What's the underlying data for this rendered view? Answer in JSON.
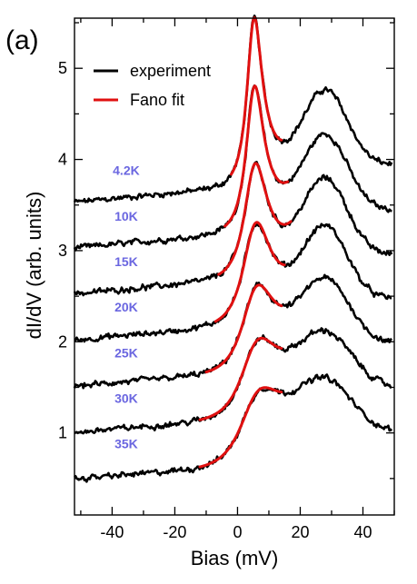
{
  "panel_label": "(a)",
  "chart_data": {
    "type": "line",
    "xlabel": "Bias (mV)",
    "ylabel": "dI/dV (arb. units)",
    "xlim": [
      -52,
      50
    ],
    "ylim": [
      0.1,
      5.55
    ],
    "xticks": [
      -40,
      -20,
      0,
      20,
      40
    ],
    "yticks": [
      1,
      2,
      3,
      4,
      5
    ],
    "legend": {
      "position": "top-left",
      "entries": [
        {
          "label": "experiment",
          "color": "#000000"
        },
        {
          "label": "Fano fit",
          "color": "#e01010"
        }
      ]
    },
    "series": [
      {
        "name": "4.2K",
        "baseline": 3.55,
        "slope": 0.0035,
        "peak_x": 5.0,
        "peak_height": 1.8,
        "peak_width": 3.0,
        "fano_q": 8,
        "hump_x": 28,
        "hump_height": 0.85,
        "hump_width": 10,
        "fit_range": [
          -2,
          14
        ]
      },
      {
        "name": "10K",
        "baseline": 3.05,
        "slope": 0.0035,
        "peak_x": 5.0,
        "peak_height": 1.55,
        "peak_width": 3.5,
        "fano_q": 7,
        "hump_x": 28,
        "hump_height": 0.85,
        "hump_width": 10,
        "fit_range": [
          -4,
          16
        ]
      },
      {
        "name": "15K",
        "baseline": 2.55,
        "slope": 0.0035,
        "peak_x": 5.0,
        "peak_height": 1.2,
        "peak_width": 4.5,
        "fano_q": 6,
        "hump_x": 28,
        "hump_height": 0.85,
        "hump_width": 10,
        "fit_range": [
          -6,
          17
        ]
      },
      {
        "name": "20K",
        "baseline": 2.05,
        "slope": 0.0035,
        "peak_x": 5.0,
        "peak_height": 1.05,
        "peak_width": 5.5,
        "fano_q": 5,
        "hump_x": 28,
        "hump_height": 0.8,
        "hump_width": 10,
        "fit_range": [
          -7,
          15
        ]
      },
      {
        "name": "25K",
        "baseline": 1.55,
        "slope": 0.0035,
        "peak_x": 5.0,
        "peak_height": 0.85,
        "peak_width": 6.5,
        "fano_q": 4,
        "hump_x": 28,
        "hump_height": 0.7,
        "hump_width": 11,
        "fit_range": [
          -10,
          14
        ]
      },
      {
        "name": "30K",
        "baseline": 1.05,
        "slope": 0.0035,
        "peak_x": 5.0,
        "peak_height": 0.75,
        "peak_width": 7.5,
        "fano_q": 3.5,
        "hump_x": 28,
        "hump_height": 0.6,
        "hump_width": 12,
        "fit_range": [
          -12,
          14
        ]
      },
      {
        "name": "35K",
        "baseline": 0.55,
        "slope": 0.0035,
        "peak_x": 5.0,
        "peak_height": 0.7,
        "peak_width": 8.5,
        "fano_q": 3,
        "hump_x": 28,
        "hump_height": 0.55,
        "hump_width": 12,
        "fit_range": [
          -12,
          14
        ]
      }
    ],
    "label_color": "#6a66e0"
  }
}
